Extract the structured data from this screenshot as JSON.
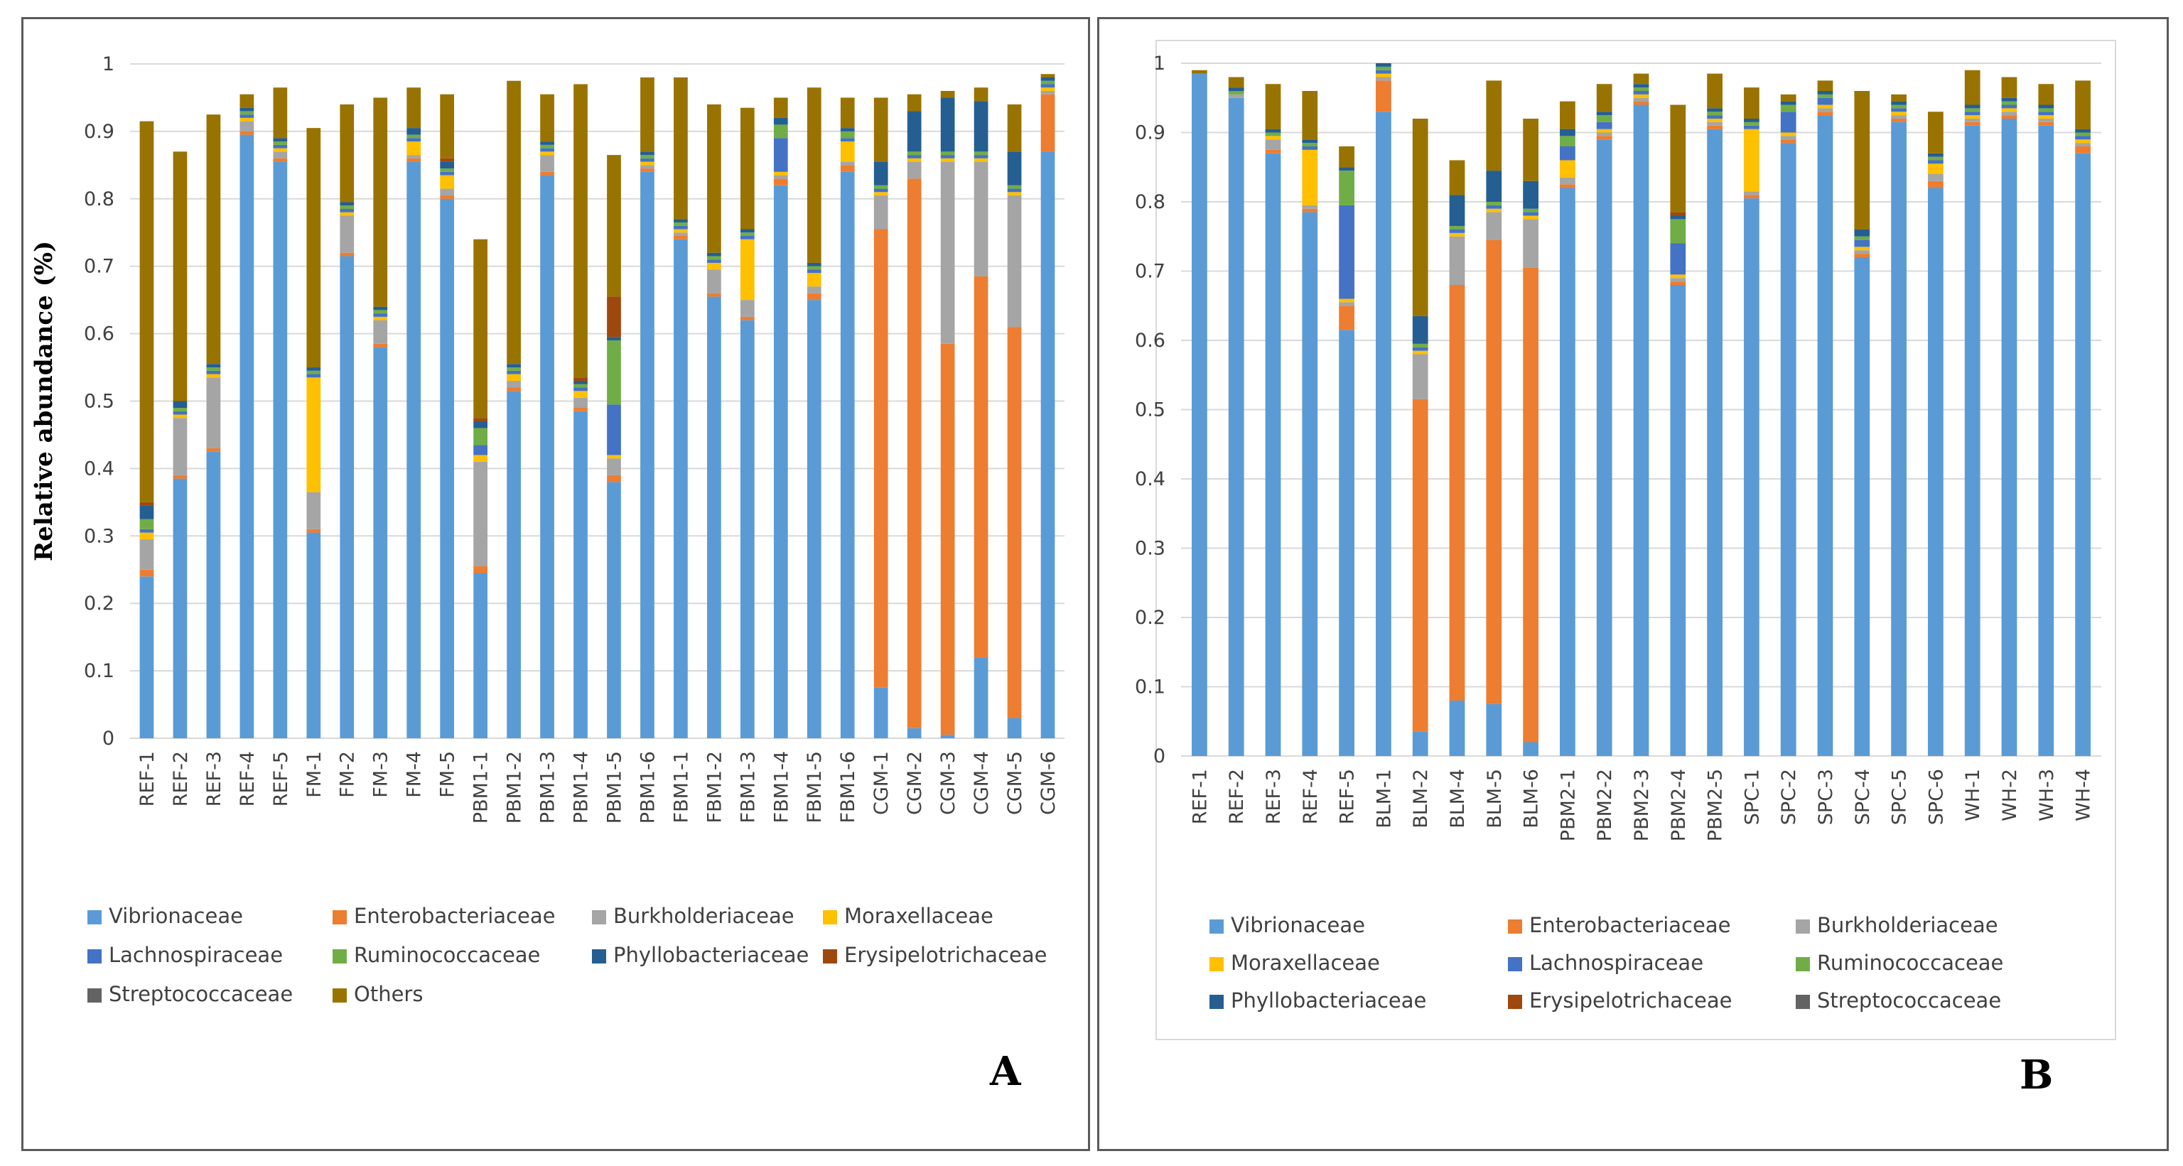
{
  "colors": {
    "Vibrionaceae": "#5b9bd5",
    "Enterobacteriaceae": "#ed7d31",
    "Burkholderiaceae": "#a5a5a5",
    "Moraxellaceae": "#ffc000",
    "Lachnospiraceae": "#4472c4",
    "Ruminococcaceae": "#70ad47",
    "Phyllobacteriaceae": "#255e91",
    "Erysipelotrichaceae": "#9e480e",
    "Streptococcaceae": "#636363",
    "Others": "#997300"
  },
  "chart_data": [
    {
      "type": "bar",
      "stacked": true,
      "panel_label": "A",
      "ylabel": "Relative abundance (%)",
      "ylim": [
        0,
        1
      ],
      "yticks": [
        "0",
        "0.1",
        "0.2",
        "0.3",
        "0.4",
        "0.5",
        "0.6",
        "0.7",
        "0.8",
        "0.9",
        "1"
      ],
      "categories": [
        "REF-1",
        "REF-2",
        "REF-3",
        "REF-4",
        "REF-5",
        "FM-1",
        "FM-2",
        "FM-3",
        "FM-4",
        "FM-5",
        "PBM1-1",
        "PBM1-2",
        "PBM1-3",
        "PBM1-4",
        "PBM1-5",
        "PBM1-6",
        "FBM1-1",
        "FBM1-2",
        "FBM1-3",
        "FBM1-4",
        "FBM1-5",
        "FBM1-6",
        "CGM-1",
        "CGM-2",
        "CGM-3",
        "CGM-4",
        "CGM-5",
        "CGM-6"
      ],
      "series": [
        {
          "name": "Vibrionaceae",
          "values": [
            0.24,
            0.385,
            0.425,
            0.895,
            0.855,
            0.305,
            0.715,
            0.58,
            0.855,
            0.8,
            0.245,
            0.515,
            0.835,
            0.485,
            0.38,
            0.84,
            0.74,
            0.655,
            0.62,
            0.82,
            0.65,
            0.84,
            0.075,
            0.015,
            0.005,
            0.12,
            0.03,
            0.87
          ]
        },
        {
          "name": "Enterobacteriaceae",
          "values": [
            0.01,
            0.005,
            0.005,
            0.005,
            0.005,
            0.005,
            0.005,
            0.005,
            0.005,
            0.005,
            0.01,
            0.005,
            0.005,
            0.005,
            0.01,
            0.005,
            0.005,
            0.005,
            0.005,
            0.01,
            0.01,
            0.01,
            0.68,
            0.815,
            0.58,
            0.565,
            0.58,
            0.085
          ]
        },
        {
          "name": "Burkholderiaceae",
          "values": [
            0.045,
            0.085,
            0.105,
            0.015,
            0.01,
            0.055,
            0.055,
            0.035,
            0.005,
            0.01,
            0.155,
            0.01,
            0.025,
            0.015,
            0.025,
            0.005,
            0.005,
            0.035,
            0.025,
            0.005,
            0.01,
            0.005,
            0.05,
            0.025,
            0.27,
            0.17,
            0.195,
            0.005
          ]
        },
        {
          "name": "Moraxellaceae",
          "values": [
            0.01,
            0.005,
            0.005,
            0.005,
            0.005,
            0.17,
            0.005,
            0.005,
            0.02,
            0.02,
            0.01,
            0.01,
            0.005,
            0.01,
            0.005,
            0.005,
            0.005,
            0.01,
            0.09,
            0.005,
            0.02,
            0.03,
            0.005,
            0.005,
            0.005,
            0.005,
            0.005,
            0.005
          ]
        },
        {
          "name": "Lachnospiraceae",
          "values": [
            0.005,
            0.005,
            0.005,
            0.005,
            0.005,
            0.005,
            0.005,
            0.005,
            0.005,
            0.005,
            0.015,
            0.005,
            0.005,
            0.005,
            0.075,
            0.005,
            0.005,
            0.005,
            0.005,
            0.05,
            0.005,
            0.005,
            0.005,
            0.005,
            0.005,
            0.005,
            0.005,
            0.005
          ]
        },
        {
          "name": "Ruminococcaceae",
          "values": [
            0.015,
            0.005,
            0.005,
            0.005,
            0.005,
            0.005,
            0.005,
            0.005,
            0.005,
            0.005,
            0.025,
            0.005,
            0.005,
            0.005,
            0.095,
            0.005,
            0.005,
            0.005,
            0.005,
            0.02,
            0.005,
            0.01,
            0.005,
            0.005,
            0.005,
            0.005,
            0.005,
            0.005
          ]
        },
        {
          "name": "Phyllobacteriaceae",
          "values": [
            0.02,
            0.01,
            0.005,
            0.005,
            0.005,
            0.005,
            0.005,
            0.005,
            0.01,
            0.01,
            0.01,
            0.005,
            0.005,
            0.005,
            0.005,
            0.005,
            0.005,
            0.005,
            0.005,
            0.01,
            0.005,
            0.005,
            0.035,
            0.06,
            0.08,
            0.075,
            0.05,
            0.005
          ]
        },
        {
          "name": "Erysipelotrichaceae",
          "values": [
            0.005,
            0.0,
            0.0,
            0.0,
            0.0,
            0.0,
            0.0,
            0.0,
            0.0,
            0.005,
            0.005,
            0.0,
            0.0,
            0.005,
            0.06,
            0.0,
            0.0,
            0.0,
            0.0,
            0.0,
            0.0,
            0.0,
            0.0,
            0.0,
            0.0,
            0.0,
            0.0,
            0.0
          ]
        },
        {
          "name": "Streptococcaceae",
          "values": [
            0.0,
            0.0,
            0.0,
            0.0,
            0.0,
            0.0,
            0.0,
            0.0,
            0.0,
            0.0,
            0.0,
            0.0,
            0.0,
            0.0,
            0.0,
            0.0,
            0.0,
            0.0,
            0.0,
            0.0,
            0.0,
            0.0,
            0.0,
            0.0,
            0.0,
            0.0,
            0.0,
            0.0
          ]
        },
        {
          "name": "Others",
          "values": [
            0.565,
            0.37,
            0.37,
            0.02,
            0.075,
            0.355,
            0.145,
            0.31,
            0.06,
            0.095,
            0.265,
            0.42,
            0.07,
            0.435,
            0.21,
            0.11,
            0.21,
            0.22,
            0.18,
            0.03,
            0.26,
            0.045,
            0.095,
            0.025,
            0.01,
            0.02,
            0.07,
            0.005
          ]
        }
      ]
    },
    {
      "type": "bar",
      "stacked": true,
      "panel_label": "B",
      "ylabel": "",
      "ylim": [
        0,
        1
      ],
      "yticks": [
        "0",
        "0.1",
        "0.2",
        "0.3",
        "0.4",
        "0.5",
        "0.6",
        "0.7",
        "0.8",
        "0.9",
        "1"
      ],
      "categories": [
        "REF-1",
        "REF-2",
        "REF-3",
        "REF-4",
        "REF-5",
        "BLM-1",
        "BLM-2",
        "BLM-4",
        "BLM-5",
        "BLM-6",
        "PBM2-1",
        "PBM2-2",
        "PBM2-3",
        "PBM2-4",
        "PBM2-5",
        "SPC-1",
        "SPC-2",
        "SPC-3",
        "SPC-4",
        "SPC-5",
        "SPC-6",
        "WH-1",
        "WH-2",
        "WH-3",
        "WH-4"
      ],
      "series": [
        {
          "name": "Vibrionaceae",
          "values": [
            0.985,
            0.95,
            0.87,
            0.785,
            0.615,
            0.93,
            0.035,
            0.08,
            0.075,
            0.02,
            0.82,
            0.89,
            0.94,
            0.68,
            0.905,
            0.805,
            0.885,
            0.925,
            0.72,
            0.915,
            0.82,
            0.91,
            0.92,
            0.91,
            0.87
          ]
        },
        {
          "name": "Enterobacteriaceae",
          "values": [
            0.0,
            0.0,
            0.005,
            0.005,
            0.035,
            0.045,
            0.48,
            0.6,
            0.67,
            0.685,
            0.005,
            0.005,
            0.005,
            0.005,
            0.005,
            0.005,
            0.005,
            0.005,
            0.005,
            0.005,
            0.01,
            0.005,
            0.005,
            0.005,
            0.01
          ]
        },
        {
          "name": "Burkholderiaceae",
          "values": [
            0.0,
            0.005,
            0.015,
            0.005,
            0.005,
            0.005,
            0.065,
            0.07,
            0.04,
            0.07,
            0.01,
            0.005,
            0.005,
            0.005,
            0.005,
            0.005,
            0.005,
            0.005,
            0.005,
            0.005,
            0.01,
            0.005,
            0.005,
            0.005,
            0.005
          ]
        },
        {
          "name": "Moraxellaceae",
          "values": [
            0.0,
            0.0,
            0.005,
            0.08,
            0.005,
            0.005,
            0.005,
            0.005,
            0.005,
            0.005,
            0.025,
            0.005,
            0.005,
            0.005,
            0.005,
            0.09,
            0.005,
            0.005,
            0.005,
            0.005,
            0.015,
            0.005,
            0.005,
            0.005,
            0.005
          ]
        },
        {
          "name": "Lachnospiraceae",
          "values": [
            0.0,
            0.0,
            0.0,
            0.005,
            0.135,
            0.005,
            0.005,
            0.005,
            0.005,
            0.005,
            0.02,
            0.01,
            0.005,
            0.045,
            0.005,
            0.005,
            0.03,
            0.01,
            0.01,
            0.005,
            0.005,
            0.005,
            0.005,
            0.005,
            0.005
          ]
        },
        {
          "name": "Ruminococcaceae",
          "values": [
            0.0,
            0.005,
            0.005,
            0.005,
            0.05,
            0.005,
            0.005,
            0.005,
            0.005,
            0.005,
            0.015,
            0.01,
            0.005,
            0.035,
            0.005,
            0.005,
            0.01,
            0.005,
            0.005,
            0.005,
            0.005,
            0.005,
            0.005,
            0.005,
            0.005
          ]
        },
        {
          "name": "Phyllobacteriaceae",
          "values": [
            0.0,
            0.005,
            0.005,
            0.005,
            0.005,
            0.005,
            0.04,
            0.045,
            0.045,
            0.04,
            0.01,
            0.005,
            0.005,
            0.005,
            0.005,
            0.005,
            0.005,
            0.005,
            0.01,
            0.005,
            0.005,
            0.005,
            0.005,
            0.005,
            0.005
          ]
        },
        {
          "name": "Erysipelotrichaceae",
          "values": [
            0.0,
            0.0,
            0.0,
            0.0,
            0.0,
            0.0,
            0.0,
            0.0,
            0.0,
            0.0,
            0.0,
            0.0,
            0.0,
            0.005,
            0.0,
            0.0,
            0.0,
            0.0,
            0.0,
            0.0,
            0.0,
            0.0,
            0.0,
            0.0,
            0.0
          ]
        },
        {
          "name": "Streptococcaceae",
          "values": [
            0.0,
            0.0,
            0.0,
            0.0,
            0.0,
            0.0,
            0.0,
            0.0,
            0.0,
            0.0,
            0.0,
            0.0,
            0.0,
            0.0,
            0.0,
            0.0,
            0.0,
            0.0,
            0.0,
            0.0,
            0.0,
            0.0,
            0.0,
            0.0,
            0.0
          ]
        },
        {
          "name": "Others",
          "values": [
            0.005,
            0.015,
            0.065,
            0.07,
            0.03,
            0.0,
            0.285,
            0.05,
            0.13,
            0.09,
            0.04,
            0.04,
            0.015,
            0.155,
            0.05,
            0.045,
            0.01,
            0.015,
            0.2,
            0.01,
            0.06,
            0.05,
            0.03,
            0.03,
            0.07
          ]
        }
      ]
    }
  ],
  "legendA": [
    [
      "Vibrionaceae",
      "Enterobacteriaceae",
      "Burkholderiaceae",
      "Moraxellaceae"
    ],
    [
      "Lachnospiraceae",
      "Ruminococcaceae",
      "Phyllobacteriaceae",
      "Erysipelotrichaceae"
    ],
    [
      "Streptococcaceae",
      "Others"
    ]
  ],
  "legendB": [
    [
      "Vibrionaceae",
      "Enterobacteriaceae",
      "Burkholderiaceae"
    ],
    [
      "Moraxellaceae",
      "Lachnospiraceae",
      "Ruminococcaceae"
    ],
    [
      "Phyllobacteriaceae",
      "Erysipelotrichaceae",
      "Streptococcaceae"
    ]
  ]
}
